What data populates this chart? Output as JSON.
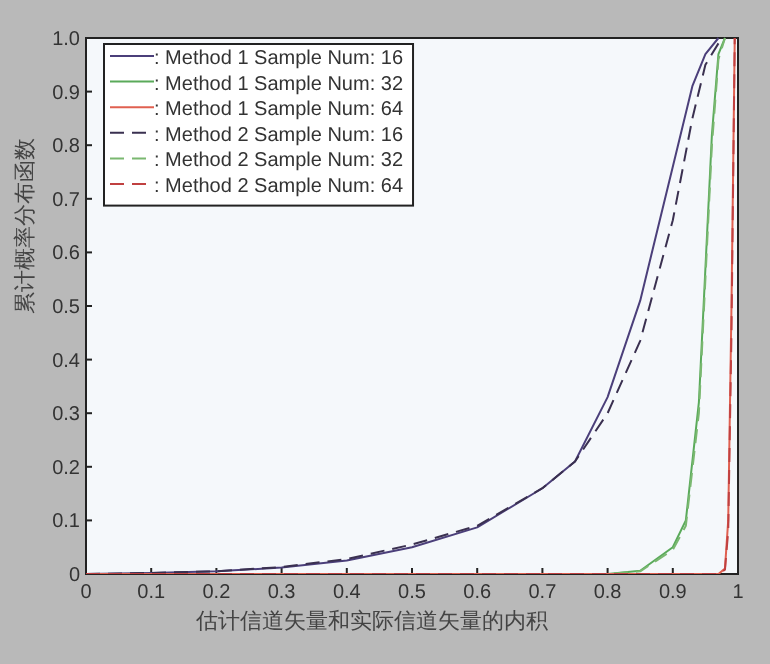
{
  "chart_data": {
    "type": "line",
    "xlabel": "估计信道矢量和实际信道矢量的内积",
    "ylabel": "累计概率分布函数",
    "xlim": [
      0,
      1
    ],
    "ylim": [
      0,
      1
    ],
    "xticks": [
      0,
      0.1,
      0.2,
      0.3,
      0.4,
      0.5,
      0.6,
      0.7,
      0.8,
      0.9,
      1
    ],
    "yticks": [
      0,
      0.1,
      0.2,
      0.3,
      0.4,
      0.5,
      0.6,
      0.7,
      0.8,
      0.9,
      {
        "value": 1,
        "label": "1.0"
      }
    ],
    "legend": "top left",
    "grid": false,
    "series": [
      {
        "name": ": Method 1 Sample Num: 16",
        "color": "#4b3f7a",
        "line_style": "solid",
        "x": [
          0,
          0.1,
          0.2,
          0.3,
          0.4,
          0.5,
          0.6,
          0.7,
          0.75,
          0.8,
          0.85,
          0.9,
          0.93,
          0.95,
          0.97
        ],
        "values": [
          0,
          0.002,
          0.005,
          0.012,
          0.025,
          0.05,
          0.087,
          0.16,
          0.21,
          0.33,
          0.51,
          0.76,
          0.91,
          0.97,
          1.0
        ]
      },
      {
        "name": ": Method 1 Sample Num: 32",
        "color": "#5aaa5a",
        "line_style": "solid",
        "x": [
          0,
          0.8,
          0.85,
          0.9,
          0.92,
          0.94,
          0.95,
          0.96,
          0.97,
          0.98
        ],
        "values": [
          0,
          0,
          0.006,
          0.05,
          0.1,
          0.32,
          0.57,
          0.82,
          0.97,
          1.0
        ]
      },
      {
        "name": ": Method 1 Sample Num: 64",
        "color": "#e06050",
        "line_style": "solid",
        "x": [
          0,
          0.97,
          0.98,
          0.985,
          0.99,
          0.995
        ],
        "values": [
          0,
          0,
          0.01,
          0.1,
          0.5,
          1.0
        ]
      },
      {
        "name": ": Method 2 Sample Num: 16",
        "color": "#3a3050",
        "line_style": "dashed",
        "x": [
          0,
          0.1,
          0.2,
          0.3,
          0.4,
          0.5,
          0.6,
          0.7,
          0.75,
          0.8,
          0.85,
          0.9,
          0.93,
          0.95,
          0.975
        ],
        "values": [
          0,
          0.002,
          0.005,
          0.013,
          0.028,
          0.055,
          0.09,
          0.16,
          0.21,
          0.3,
          0.435,
          0.66,
          0.85,
          0.95,
          1.0
        ]
      },
      {
        "name": ": Method 2 Sample Num: 32",
        "color": "#7ab870",
        "line_style": "dashed",
        "x": [
          0,
          0.8,
          0.85,
          0.9,
          0.92,
          0.94,
          0.95,
          0.96,
          0.97,
          0.98
        ],
        "values": [
          0,
          0,
          0.005,
          0.045,
          0.09,
          0.3,
          0.55,
          0.8,
          0.96,
          1.0
        ]
      },
      {
        "name": ": Method 2 Sample Num: 64",
        "color": "#c04040",
        "line_style": "dashed",
        "x": [
          0,
          0.97,
          0.98,
          0.985,
          0.99,
          0.995
        ],
        "values": [
          0,
          0,
          0.008,
          0.08,
          0.45,
          1.0
        ]
      }
    ]
  }
}
